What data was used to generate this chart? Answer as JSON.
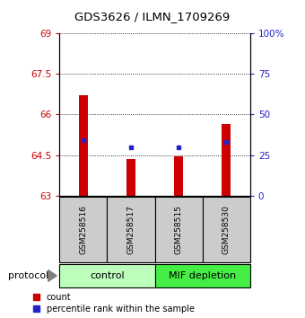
{
  "title": "GDS3626 / ILMN_1709269",
  "samples": [
    "GSM258516",
    "GSM258517",
    "GSM258515",
    "GSM258530"
  ],
  "groups": [
    {
      "name": "control",
      "color": "#bbffbb",
      "indices": [
        0,
        1
      ]
    },
    {
      "name": "MIF depletion",
      "color": "#44ee44",
      "indices": [
        2,
        3
      ]
    }
  ],
  "bar_values": [
    66.7,
    64.35,
    64.45,
    65.65
  ],
  "bar_base": 63.0,
  "percentile_values": [
    34,
    30,
    30,
    33
  ],
  "ylim": [
    63.0,
    69.0
  ],
  "yticks_left": [
    63,
    64.5,
    66,
    67.5,
    69
  ],
  "yticks_right": [
    0,
    25,
    50,
    75,
    100
  ],
  "bar_color": "#cc0000",
  "dot_color": "#2222cc",
  "bg_color": "#cccccc",
  "left_tick_color": "#cc0000",
  "right_tick_color": "#2222cc",
  "legend_items": [
    {
      "label": "count",
      "color": "#cc0000"
    },
    {
      "label": "percentile rank within the sample",
      "color": "#2222cc"
    }
  ],
  "protocol_label": "protocol",
  "bar_width": 0.18
}
